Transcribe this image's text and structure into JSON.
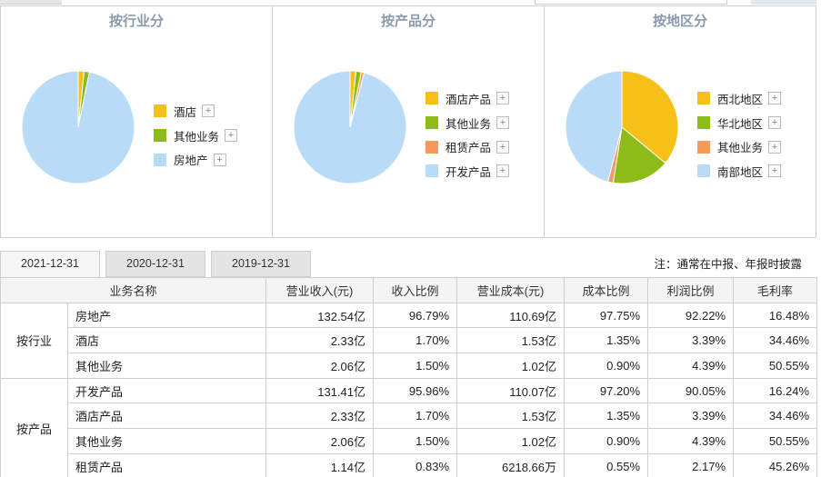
{
  "charts": [
    {
      "title": "按行业分",
      "legend": [
        "酒店",
        "其他业务",
        "房地产"
      ],
      "colors": [
        "#f5c118",
        "#8dbb18",
        "#b8dcf8"
      ],
      "draw_order": [
        0,
        1,
        2
      ]
    },
    {
      "title": "按产品分",
      "legend": [
        "酒店产品",
        "其他业务",
        "租赁产品",
        "开发产品"
      ],
      "colors": [
        "#f5c118",
        "#8dbb18",
        "#f49a5a",
        "#b8dcf8"
      ],
      "draw_order": [
        0,
        1,
        2,
        3
      ]
    },
    {
      "title": "按地区分",
      "legend": [
        "西北地区",
        "华北地区",
        "其他业务",
        "南部地区"
      ],
      "colors": [
        "#f5c118",
        "#8dbb18",
        "#f49a5a",
        "#b8dcf8"
      ],
      "draw_order": [
        0,
        1,
        2,
        3
      ]
    }
  ],
  "chart_data": [
    {
      "type": "pie",
      "title": "按行业分",
      "categories": [
        "酒店",
        "其他业务",
        "房地产"
      ],
      "values": [
        1.7,
        1.5,
        96.79
      ]
    },
    {
      "type": "pie",
      "title": "按产品分",
      "categories": [
        "酒店产品",
        "其他业务",
        "租赁产品",
        "开发产品"
      ],
      "values": [
        1.7,
        1.5,
        0.83,
        95.96
      ]
    },
    {
      "type": "pie",
      "title": "按地区分",
      "categories": [
        "西北地区",
        "华北地区",
        "其他业务",
        "南部地区"
      ],
      "values": [
        36.0,
        16.5,
        1.5,
        46.0
      ]
    }
  ],
  "tabs": [
    "2021-12-31",
    "2020-12-31",
    "2019-12-31"
  ],
  "note": "注：通常在中报、年报时披露",
  "table": {
    "headers": [
      "业务名称",
      "营业收入(元)",
      "收入比例",
      "营业成本(元)",
      "成本比例",
      "利润比例",
      "毛利率"
    ],
    "groups": [
      {
        "label": "按行业",
        "rows": [
          [
            "房地产",
            "132.54亿",
            "96.79%",
            "110.69亿",
            "97.75%",
            "92.22%",
            "16.48%"
          ],
          [
            "酒店",
            "2.33亿",
            "1.70%",
            "1.53亿",
            "1.35%",
            "3.39%",
            "34.46%"
          ],
          [
            "其他业务",
            "2.06亿",
            "1.50%",
            "1.02亿",
            "0.90%",
            "4.39%",
            "50.55%"
          ]
        ]
      },
      {
        "label": "按产品",
        "rows": [
          [
            "开发产品",
            "131.41亿",
            "95.96%",
            "110.07亿",
            "97.20%",
            "90.05%",
            "16.24%"
          ],
          [
            "酒店产品",
            "2.33亿",
            "1.70%",
            "1.53亿",
            "1.35%",
            "3.39%",
            "34.46%"
          ],
          [
            "其他业务",
            "2.06亿",
            "1.50%",
            "1.02亿",
            "0.90%",
            "4.39%",
            "50.55%"
          ],
          [
            "租赁产品",
            "1.14亿",
            "0.83%",
            "6218.66万",
            "0.55%",
            "2.17%",
            "45.26%"
          ]
        ]
      }
    ]
  }
}
